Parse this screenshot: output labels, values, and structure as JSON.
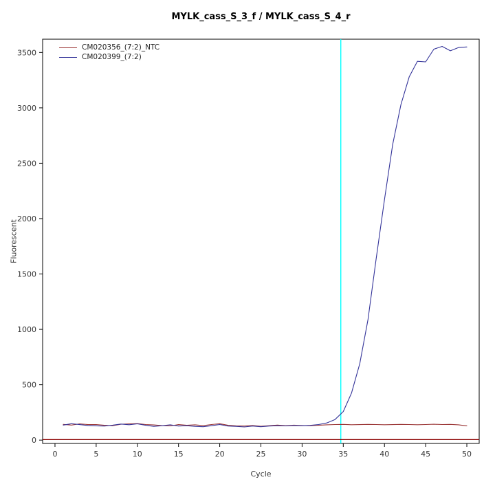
{
  "chart_data": {
    "type": "line",
    "title": "MYLK_cass_S_3_f / MYLK_cass_S_4_r",
    "xlabel": "Cycle",
    "ylabel": "Fluorescent",
    "xlim": [
      -1.5,
      51.5
    ],
    "ylim": [
      -30,
      3620
    ],
    "xticks": [
      0,
      5,
      10,
      15,
      20,
      25,
      30,
      35,
      40,
      45,
      50
    ],
    "yticks": [
      0,
      500,
      1000,
      1500,
      2000,
      2500,
      3000,
      3500
    ],
    "grid": false,
    "legend_position": "top-left",
    "x": [
      1,
      2,
      3,
      4,
      5,
      6,
      7,
      8,
      9,
      10,
      11,
      12,
      13,
      14,
      15,
      16,
      17,
      18,
      19,
      20,
      21,
      22,
      23,
      24,
      25,
      26,
      27,
      28,
      29,
      30,
      31,
      32,
      33,
      34,
      35,
      36,
      37,
      38,
      39,
      40,
      41,
      42,
      43,
      44,
      45,
      46,
      47,
      48,
      49,
      50
    ],
    "series": [
      {
        "name": "CM020356_(7:2)_NTC",
        "color": "#993333",
        "values": [
          142,
          136,
          147,
          140,
          141,
          134,
          130,
          143,
          146,
          150,
          141,
          137,
          131,
          128,
          140,
          134,
          138,
          131,
          141,
          148,
          134,
          129,
          127,
          132,
          125,
          130,
          136,
          130,
          135,
          132,
          130,
          134,
          138,
          141,
          142,
          139,
          140,
          142,
          141,
          139,
          140,
          142,
          141,
          139,
          141,
          143,
          141,
          142,
          138,
          129
        ]
      },
      {
        "name": "CM020399_(7:2)",
        "color": "#333399",
        "values": [
          136,
          148,
          140,
          132,
          129,
          127,
          135,
          145,
          139,
          147,
          134,
          124,
          130,
          138,
          127,
          130,
          124,
          121,
          130,
          141,
          127,
          124,
          119,
          127,
          121,
          127,
          130,
          128,
          132,
          130,
          133,
          141,
          155,
          186,
          258,
          425,
          690,
          1090,
          1640,
          2170,
          2670,
          3030,
          3280,
          3420,
          3415,
          3530,
          3555,
          3515,
          3545,
          3550
        ]
      }
    ],
    "threshold_line": {
      "y": 5,
      "color": "#8B0000"
    },
    "ct_line": {
      "x": 34.7,
      "color": "#00FFFF"
    }
  }
}
